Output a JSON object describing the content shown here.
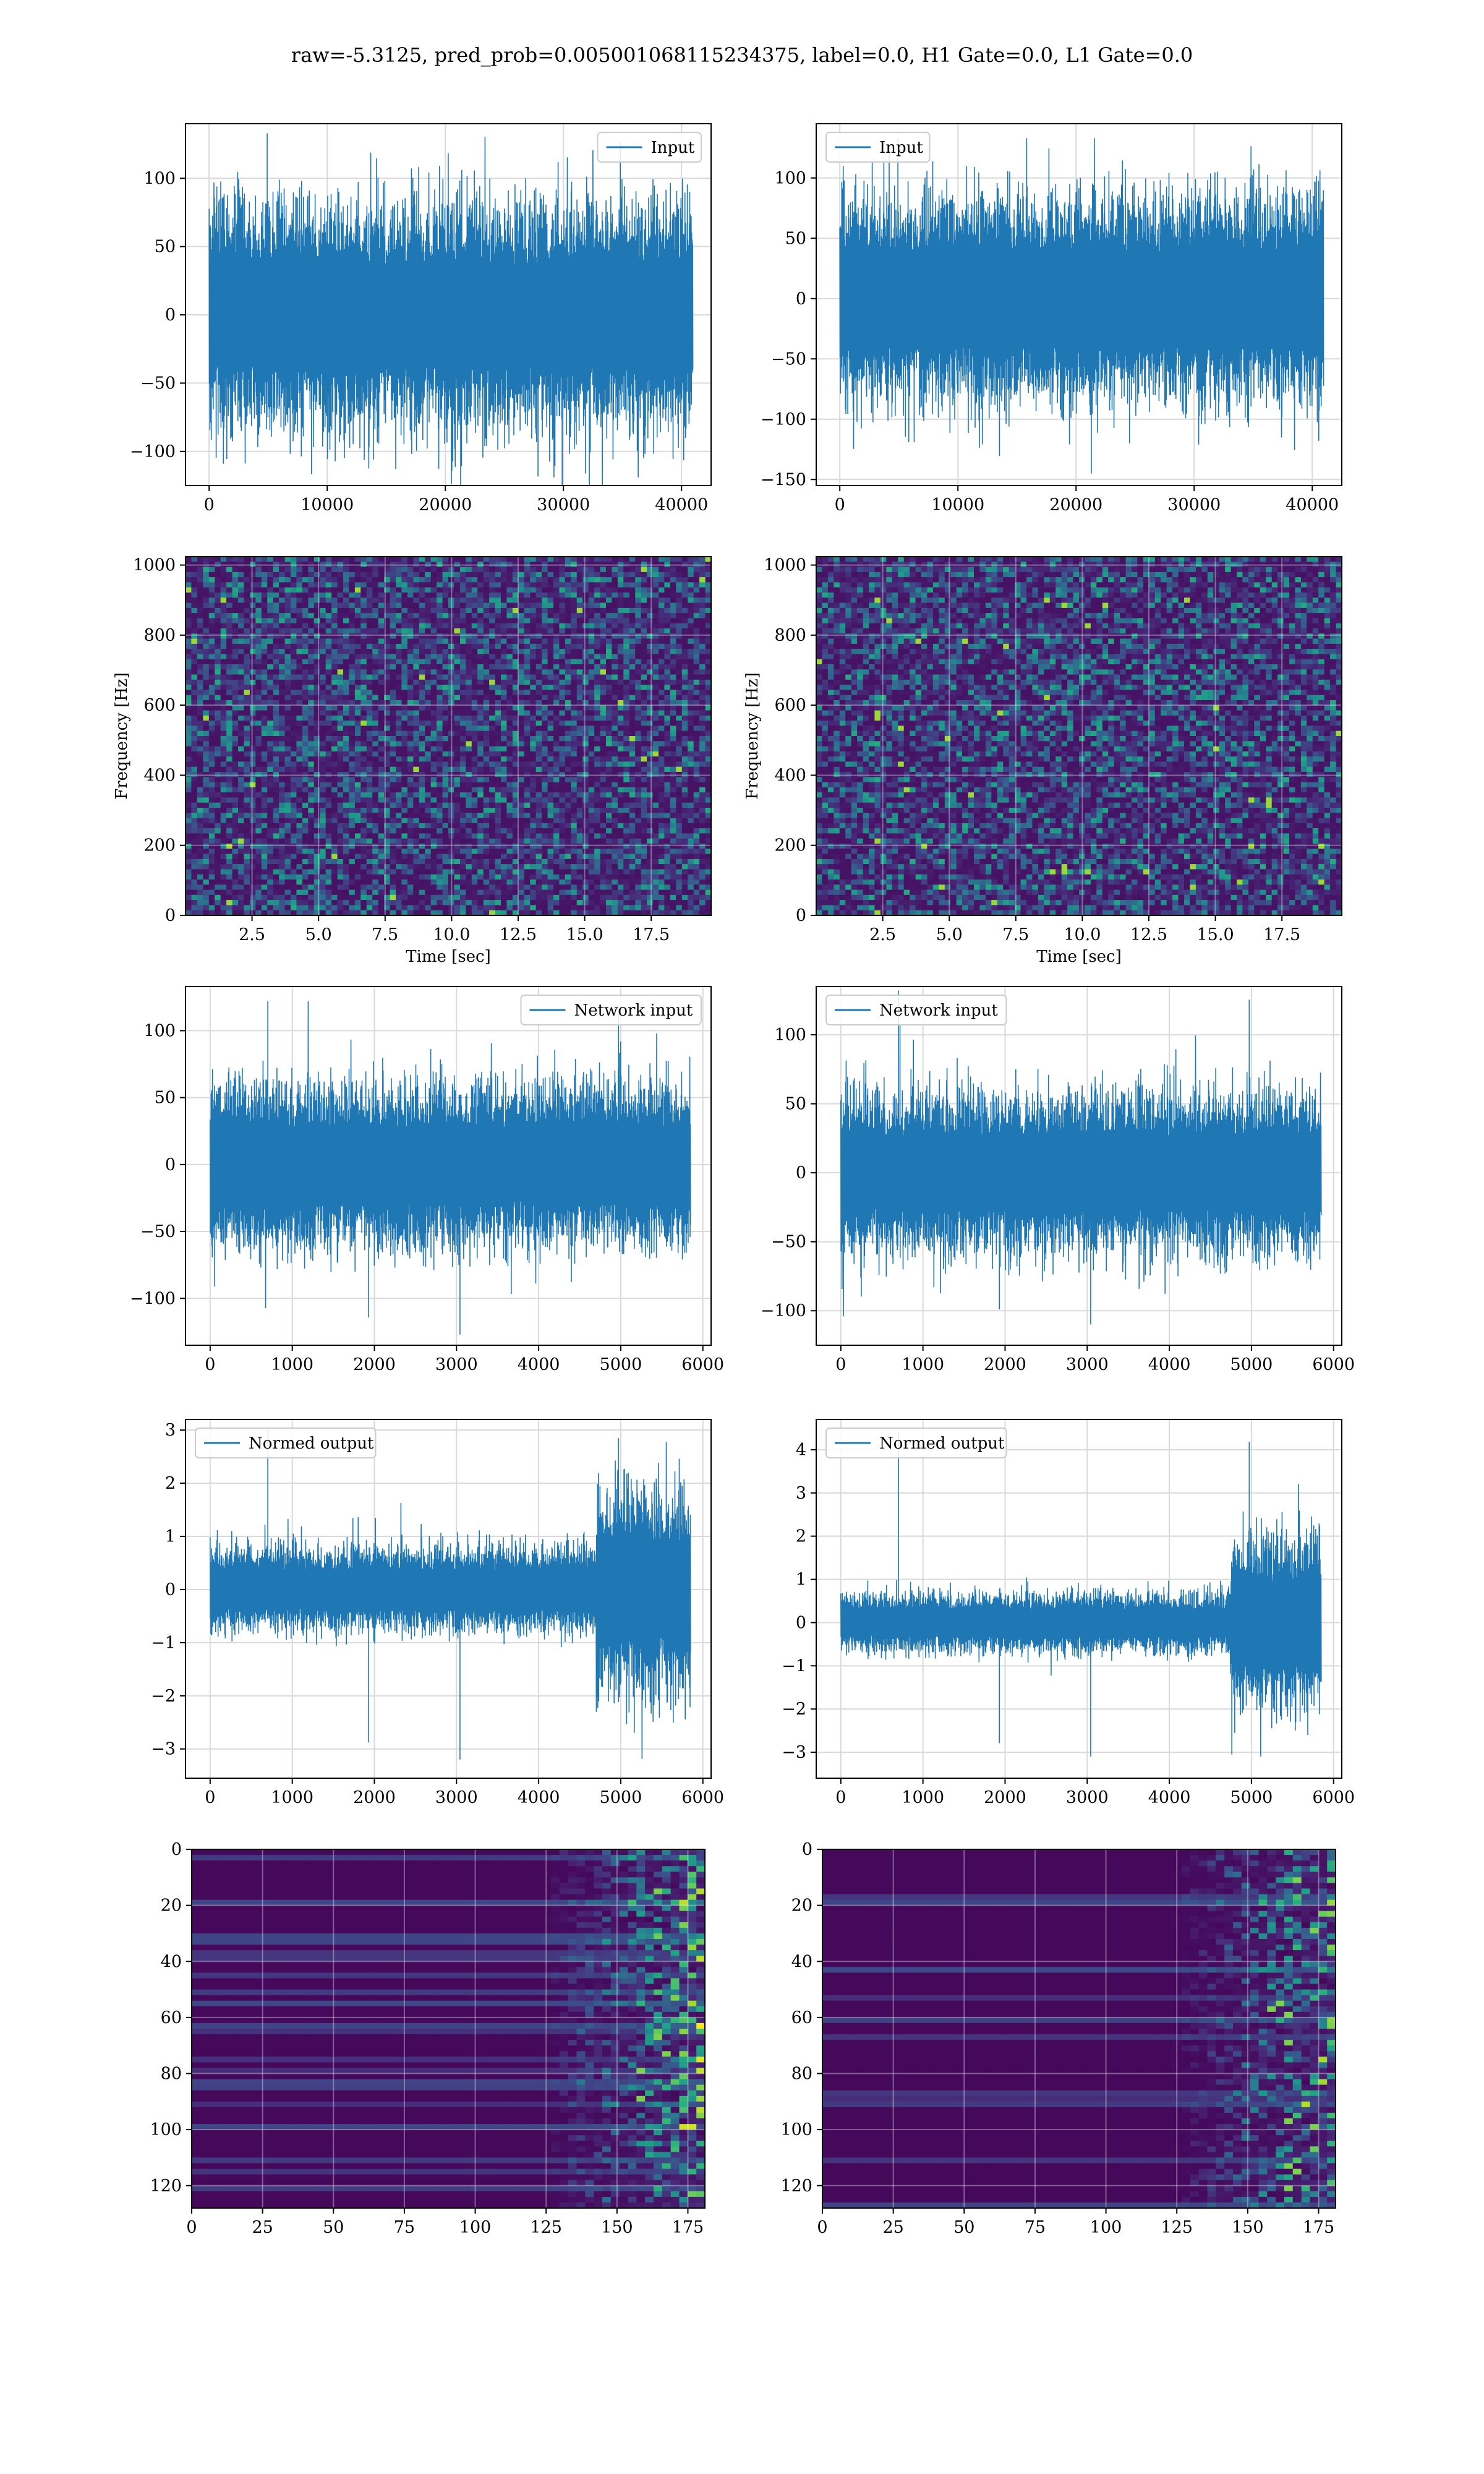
{
  "suptitle": "raw=-5.3125, pred_prob=0.005001068115234375, label=0.0, H1 Gate=0.0, L1 Gate=0.0",
  "colors": {
    "line": "#1f77b4",
    "grid": "#d9d9d9",
    "viridis_low": "#440154",
    "viridis_high": "#fde725"
  },
  "chart_data": [
    {
      "id": "input-h1",
      "type": "line",
      "panel": "row1-left",
      "legend": "Input",
      "legend_loc": "upper right",
      "xlim": [
        -2000,
        42500
      ],
      "xticks": [
        0,
        10000,
        20000,
        30000,
        40000
      ],
      "ylim": [
        -125,
        140
      ],
      "yticks": [
        -100,
        -50,
        0,
        50,
        100
      ],
      "x_range": [
        0,
        40960
      ],
      "band": 68,
      "spike_max": 133,
      "spike_min": -125,
      "grid": true
    },
    {
      "id": "input-l1",
      "type": "line",
      "panel": "row1-right",
      "legend": "Input",
      "legend_loc": "upper left",
      "xlim": [
        -2000,
        42500
      ],
      "xticks": [
        0,
        10000,
        20000,
        30000,
        40000
      ],
      "ylim": [
        -155,
        145
      ],
      "yticks": [
        -150,
        -100,
        -50,
        0,
        50,
        100
      ],
      "x_range": [
        0,
        40960
      ],
      "band": 70,
      "spike_max": 133,
      "spike_min": -145,
      "grid": true
    },
    {
      "id": "spec-h1",
      "type": "heatmap",
      "panel": "row2-left",
      "xlabel": "Time [sec]",
      "ylabel": "Frequency [Hz]",
      "xlim": [
        0,
        19.75
      ],
      "xticks": [
        2.5,
        5.0,
        7.5,
        10.0,
        12.5,
        15.0,
        17.5
      ],
      "xticklabels": [
        "2.5",
        "5.0",
        "7.5",
        "10.0",
        "12.5",
        "15.0",
        "17.5"
      ],
      "ylim": [
        0,
        1024
      ],
      "yticks": [
        0,
        200,
        400,
        600,
        800,
        1000
      ],
      "grid": true
    },
    {
      "id": "spec-l1",
      "type": "heatmap",
      "panel": "row2-right",
      "xlabel": "Time [sec]",
      "ylabel": "Frequency [Hz]",
      "xlim": [
        0,
        19.75
      ],
      "xticks": [
        2.5,
        5.0,
        7.5,
        10.0,
        12.5,
        15.0,
        17.5
      ],
      "xticklabels": [
        "2.5",
        "5.0",
        "7.5",
        "10.0",
        "12.5",
        "15.0",
        "17.5"
      ],
      "ylim": [
        0,
        1024
      ],
      "yticks": [
        0,
        200,
        400,
        600,
        800,
        1000
      ],
      "grid": true
    },
    {
      "id": "netin-h1",
      "type": "line",
      "panel": "row3-left",
      "legend": "Network input",
      "legend_loc": "upper right",
      "xlim": [
        -300,
        6100
      ],
      "xticks": [
        0,
        1000,
        2000,
        3000,
        4000,
        5000,
        6000
      ],
      "ylim": [
        -135,
        133
      ],
      "yticks": [
        -100,
        -50,
        0,
        50,
        100
      ],
      "x_range": [
        0,
        5850
      ],
      "band": 50,
      "spike_max": 122,
      "spike_min": -127,
      "grid": true
    },
    {
      "id": "netin-l1",
      "type": "line",
      "panel": "row3-right",
      "legend": "Network input",
      "legend_loc": "upper left",
      "xlim": [
        -300,
        6100
      ],
      "xticks": [
        0,
        1000,
        2000,
        3000,
        4000,
        5000,
        6000
      ],
      "ylim": [
        -125,
        135
      ],
      "yticks": [
        -100,
        -50,
        0,
        50,
        100
      ],
      "x_range": [
        0,
        5850
      ],
      "band": 48,
      "spike_max": 132,
      "spike_min": -110,
      "grid": true
    },
    {
      "id": "normed-h1",
      "type": "line",
      "panel": "row4-left",
      "legend": "Normed output",
      "legend_loc": "upper left",
      "xlim": [
        -300,
        6100
      ],
      "xticks": [
        0,
        1000,
        2000,
        3000,
        4000,
        5000,
        6000
      ],
      "ylim": [
        -3.55,
        3.2
      ],
      "yticks": [
        -3,
        -2,
        -1,
        0,
        1,
        2,
        3
      ],
      "x_range": [
        0,
        5850
      ],
      "band": 0.65,
      "burst_start": 4700,
      "burst_band": 1.6,
      "spike_max": 3.0,
      "spike_min": -3.2,
      "grid": true
    },
    {
      "id": "normed-l1",
      "type": "line",
      "panel": "row4-right",
      "legend": "Normed output",
      "legend_loc": "upper left",
      "xlim": [
        -300,
        6100
      ],
      "xticks": [
        0,
        1000,
        2000,
        3000,
        4000,
        5000,
        6000
      ],
      "ylim": [
        -3.6,
        4.7
      ],
      "yticks": [
        -3,
        -2,
        -1,
        0,
        1,
        2,
        3,
        4
      ],
      "x_range": [
        0,
        5850
      ],
      "band": 0.55,
      "burst_start": 4750,
      "burst_band": 1.7,
      "spike_max": 4.4,
      "spike_min": -3.1,
      "grid": true
    },
    {
      "id": "feat-h1",
      "type": "heatmap",
      "panel": "row5-left",
      "xlim": [
        0,
        181
      ],
      "xticks": [
        0,
        25,
        50,
        75,
        100,
        125,
        150,
        175
      ],
      "ylim": [
        128,
        0
      ],
      "yticks": [
        0,
        20,
        40,
        60,
        80,
        100,
        120
      ],
      "grid": true
    },
    {
      "id": "feat-l1",
      "type": "heatmap",
      "panel": "row5-right",
      "xlim": [
        0,
        181
      ],
      "xticks": [
        0,
        25,
        50,
        75,
        100,
        125,
        150,
        175
      ],
      "ylim": [
        128,
        0
      ],
      "yticks": [
        0,
        20,
        40,
        60,
        80,
        100,
        120
      ],
      "grid": true
    }
  ]
}
